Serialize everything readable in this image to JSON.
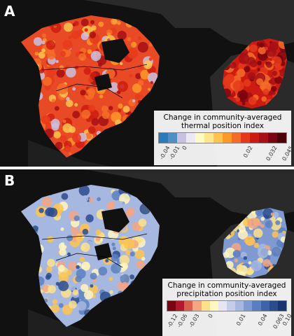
{
  "panels": [
    {
      "letter": "A",
      "legend_title_line1": "Change in community-averaged",
      "legend_title_line2": "thermal position index",
      "legend_colors": [
        "#2c7bb6",
        "#4f8fc4",
        "#c9c1e0",
        "#ede8f5",
        "#fff9c4",
        "#fee58a",
        "#fec44f",
        "#fe9929",
        "#f46d28",
        "#e6391c",
        "#cc1c12",
        "#a50f15",
        "#7a0410",
        "#4d0208"
      ],
      "legend_ticks": [
        {
          "label": "-0.04",
          "pos": 0.02
        },
        {
          "label": "-0.01",
          "pos": 0.1
        },
        {
          "label": "0",
          "pos": 0.24
        },
        {
          "label": "0.02",
          "pos": 0.68
        },
        {
          "label": "0.032",
          "pos": 0.84
        },
        {
          "label": "0.045",
          "pos": 0.97
        }
      ],
      "map_palette": [
        "#f46d28",
        "#e6391c",
        "#fe9929",
        "#fec44f",
        "#c9c1e0",
        "#a50f15",
        "#cc1c12"
      ]
    },
    {
      "letter": "B",
      "legend_title_line1": "Change in community-averaged",
      "legend_title_line2": "precipitation position index",
      "legend_colors": [
        "#7a0410",
        "#b2182b",
        "#d6604d",
        "#f4a582",
        "#fee08b",
        "#fff6c0",
        "#e6e6f2",
        "#c6cde8",
        "#a6b8e0",
        "#7f9ad0",
        "#5a7fc0",
        "#3f63a8",
        "#2c4b8c",
        "#1a3470"
      ],
      "legend_ticks": [
        {
          "label": "-0.12",
          "pos": 0.02
        },
        {
          "label": "-0.06",
          "pos": 0.1
        },
        {
          "label": "-0.03",
          "pos": 0.2
        },
        {
          "label": "0",
          "pos": 0.4
        },
        {
          "label": "0.01",
          "pos": 0.6
        },
        {
          "label": "0.04",
          "pos": 0.78
        },
        {
          "label": "0.063",
          "pos": 0.89
        },
        {
          "label": "0.10",
          "pos": 0.98
        }
      ],
      "map_palette": [
        "#fee08b",
        "#a6b8e0",
        "#5a7fc0",
        "#fff6c0",
        "#fec44f",
        "#2c4b8c",
        "#f4a582"
      ]
    }
  ],
  "colors": {
    "land_background": "#2a2a2a",
    "ocean": "#111111",
    "divider": "#ffffff",
    "border_lines": "#000000"
  }
}
